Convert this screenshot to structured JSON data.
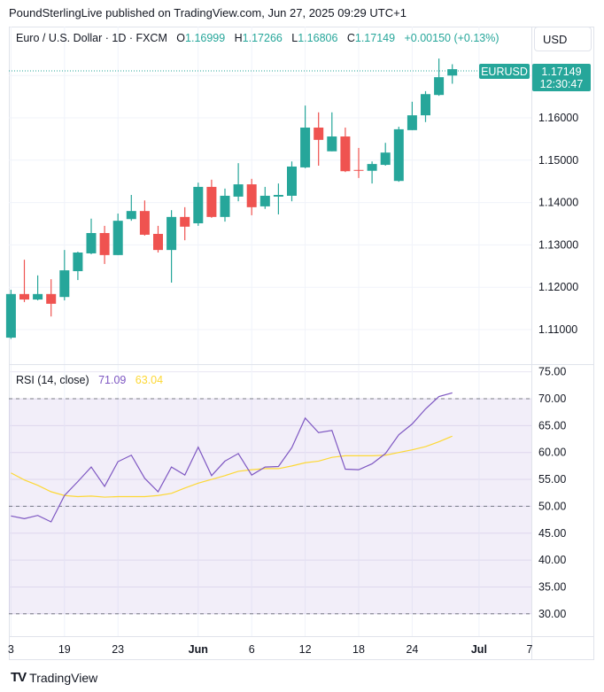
{
  "publisher": "PoundSterlingLive published on TradingView.com, Jun 27, 2025 09:29 UTC+1",
  "legend": {
    "symbol": "Euro / U.S. Dollar · 1D · FXCM",
    "o_label": "O",
    "o": "1.16999",
    "h_label": "H",
    "h": "1.17266",
    "l_label": "L",
    "l": "1.16806",
    "c_label": "C",
    "c": "1.17149",
    "change": "+0.00150 (+0.13%)"
  },
  "currency_button": "USD",
  "last_price": {
    "ticker": "EURUSD",
    "price": "1.17149",
    "countdown": "12:30:47"
  },
  "rsi_legend": {
    "label": "RSI (14, close)",
    "rsi": "71.09",
    "ma": "63.04"
  },
  "footer": {
    "logo": "TV",
    "brand": "TradingView"
  },
  "colors": {
    "up": "#26a69a",
    "down": "#ef5350",
    "rsi": "#7e57c2",
    "rsi_ma": "#fdd835",
    "band": "#7e57c2"
  },
  "chart_data": [
    {
      "type": "candlestick",
      "title": "Euro / U.S. Dollar · 1D · FXCM",
      "ylim": [
        1.105,
        1.18
      ],
      "y_ticks": [
        "1.16000",
        "1.15000",
        "1.14000",
        "1.13000",
        "1.12000",
        "1.11000"
      ],
      "y_tick_values": [
        1.16,
        1.15,
        1.14,
        1.13,
        1.12,
        1.11
      ],
      "x_tick_labels": [
        {
          "label": "3",
          "index": 0,
          "bold": false
        },
        {
          "label": "19",
          "index": 4,
          "bold": false
        },
        {
          "label": "23",
          "index": 8,
          "bold": false
        },
        {
          "label": "Jun",
          "index": 14,
          "bold": true
        },
        {
          "label": "6",
          "index": 18,
          "bold": false
        },
        {
          "label": "12",
          "index": 22,
          "bold": false
        },
        {
          "label": "18",
          "index": 26,
          "bold": false
        },
        {
          "label": "24",
          "index": 30,
          "bold": false
        },
        {
          "label": "Jul",
          "index": 35,
          "bold": true
        },
        {
          "label": "7",
          "index": 39,
          "bold": false
        }
      ],
      "ohlc": [
        [
          1.1081,
          1.1194,
          1.1078,
          1.1184
        ],
        [
          1.1184,
          1.1265,
          1.1165,
          1.1171
        ],
        [
          1.1171,
          1.1228,
          1.1169,
          1.1184
        ],
        [
          1.1184,
          1.1219,
          1.1131,
          1.1161
        ],
        [
          1.1177,
          1.1288,
          1.1169,
          1.124
        ],
        [
          1.1238,
          1.1284,
          1.1217,
          1.1282
        ],
        [
          1.128,
          1.1362,
          1.1278,
          1.1328
        ],
        [
          1.1328,
          1.1345,
          1.1255,
          1.1276
        ],
        [
          1.1276,
          1.1374,
          1.1276,
          1.1357
        ],
        [
          1.1361,
          1.1418,
          1.1357,
          1.138
        ],
        [
          1.138,
          1.1405,
          1.1322,
          1.1324
        ],
        [
          1.1326,
          1.1345,
          1.1282,
          1.1288
        ],
        [
          1.1288,
          1.1382,
          1.1211,
          1.1366
        ],
        [
          1.1366,
          1.1389,
          1.1311,
          1.1343
        ],
        [
          1.1351,
          1.1447,
          1.1345,
          1.1437
        ],
        [
          1.1437,
          1.1454,
          1.1364,
          1.1366
        ],
        [
          1.1366,
          1.1433,
          1.1355,
          1.1416
        ],
        [
          1.1414,
          1.1493,
          1.1403,
          1.1443
        ],
        [
          1.1443,
          1.1456,
          1.137,
          1.1389
        ],
        [
          1.1391,
          1.1437,
          1.1385,
          1.1416
        ],
        [
          1.1414,
          1.1445,
          1.1372,
          1.1418
        ],
        [
          1.1416,
          1.1497,
          1.1403,
          1.1485
        ],
        [
          1.1483,
          1.1629,
          1.1481,
          1.1577
        ],
        [
          1.1577,
          1.1613,
          1.1487,
          1.1548
        ],
        [
          1.1521,
          1.1613,
          1.1521,
          1.1556
        ],
        [
          1.1556,
          1.1577,
          1.1472,
          1.1474
        ],
        [
          1.1477,
          1.1529,
          1.1458,
          1.1475
        ],
        [
          1.1475,
          1.1497,
          1.1445,
          1.1491
        ],
        [
          1.1489,
          1.1541,
          1.1487,
          1.1518
        ],
        [
          1.1451,
          1.1579,
          1.1449,
          1.1573
        ],
        [
          1.1571,
          1.1638,
          1.1571,
          1.1606
        ],
        [
          1.1606,
          1.1663,
          1.159,
          1.1656
        ],
        [
          1.1654,
          1.174,
          1.1652,
          1.1696
        ],
        [
          1.16999,
          1.17266,
          1.16806,
          1.17149
        ]
      ]
    },
    {
      "type": "line",
      "title": "RSI (14, close)",
      "ylim": [
        27.5,
        77.5
      ],
      "y_ticks": [
        "75.00",
        "70.00",
        "65.00",
        "60.00",
        "55.00",
        "50.00",
        "45.00",
        "40.00",
        "35.00",
        "30.00"
      ],
      "y_tick_values": [
        75,
        70,
        65,
        60,
        55,
        50,
        45,
        40,
        35,
        30
      ],
      "bands": {
        "upper": 70,
        "middle": 50,
        "lower": 30
      },
      "series": [
        {
          "name": "RSI",
          "values": [
            48.2,
            47.7,
            48.3,
            47.1,
            52.0,
            54.6,
            57.3,
            53.7,
            58.3,
            59.5,
            55.2,
            52.7,
            57.3,
            55.8,
            61.0,
            55.7,
            58.4,
            59.8,
            55.8,
            57.3,
            57.4,
            60.9,
            66.4,
            63.7,
            64.1,
            56.9,
            56.8,
            57.9,
            59.8,
            63.3,
            65.3,
            68.1,
            70.4,
            71.09
          ]
        },
        {
          "name": "RSI-based MA",
          "values": [
            56.2,
            54.9,
            53.9,
            52.7,
            52.0,
            51.8,
            51.9,
            51.7,
            51.8,
            51.8,
            51.8,
            52.0,
            52.4,
            53.4,
            54.3,
            55.0,
            55.7,
            56.5,
            56.8,
            57.0,
            57.0,
            57.5,
            58.1,
            58.4,
            59.1,
            59.4,
            59.4,
            59.4,
            59.5,
            60.0,
            60.5,
            61.1,
            62.0,
            63.04
          ]
        }
      ]
    }
  ]
}
